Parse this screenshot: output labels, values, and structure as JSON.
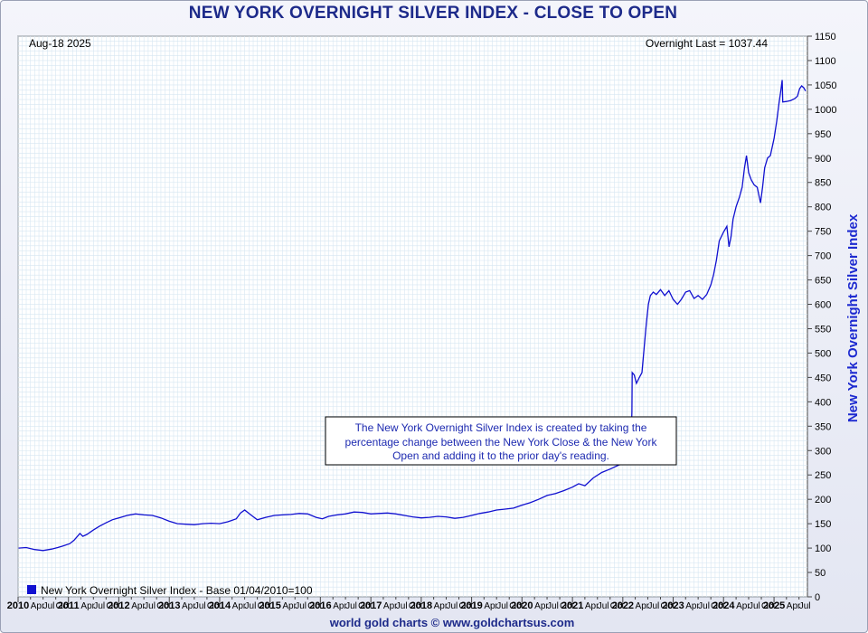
{
  "header": {
    "title": "NEW YORK OVERNIGHT SILVER INDEX - CLOSE TO OPEN"
  },
  "footer": {
    "credit": "world gold charts © www.goldchartsus.com"
  },
  "colors": {
    "line": "#1010d0",
    "title": "#1d2a8a",
    "grid": "#d6e6f2",
    "legend_swatch": "#1010d0"
  },
  "chart_data": {
    "type": "line",
    "date_label": "Aug-18  2025",
    "last_label": "Overnight Last = 1037.44",
    "ylabel": "New York Overnight Silver Index",
    "legend": "New York Overnight Silver Index - Base 01/04/2010=100",
    "annotation": [
      "The New York Overnight Silver Index is created by taking the",
      "percentage change between the New York Close & the New York",
      "Open and adding it to the prior day's reading."
    ],
    "ylim": [
      0,
      1150
    ],
    "yticks": [
      "0",
      "50",
      "100",
      "150",
      "200",
      "250",
      "300",
      "350",
      "400",
      "450",
      "500",
      "550",
      "600",
      "650",
      "700",
      "750",
      "800",
      "850",
      "900",
      "950",
      "1000",
      "1050",
      "1100",
      "1150"
    ],
    "xlim": [
      "2010-01-01",
      "2025-08-31"
    ],
    "xticks": [
      {
        "date": "2010-01-01",
        "label": "2010"
      },
      {
        "date": "2010-04-01",
        "label": "Apr"
      },
      {
        "date": "2010-07-01",
        "label": "Jul"
      },
      {
        "date": "2010-10-01",
        "label": "Oct"
      },
      {
        "date": "2011-01-01",
        "label": "2011"
      },
      {
        "date": "2011-04-01",
        "label": "Apr"
      },
      {
        "date": "2011-07-01",
        "label": "Jul"
      },
      {
        "date": "2011-10-01",
        "label": "Oct"
      },
      {
        "date": "2012-01-01",
        "label": "2012"
      },
      {
        "date": "2012-04-01",
        "label": "Apr"
      },
      {
        "date": "2012-07-01",
        "label": "Jul"
      },
      {
        "date": "2012-10-01",
        "label": "Oct"
      },
      {
        "date": "2013-01-01",
        "label": "2013"
      },
      {
        "date": "2013-04-01",
        "label": "Apr"
      },
      {
        "date": "2013-07-01",
        "label": "Jul"
      },
      {
        "date": "2013-10-01",
        "label": "Oct"
      },
      {
        "date": "2014-01-01",
        "label": "2014"
      },
      {
        "date": "2014-04-01",
        "label": "Apr"
      },
      {
        "date": "2014-07-01",
        "label": "Jul"
      },
      {
        "date": "2014-10-01",
        "label": "Oct"
      },
      {
        "date": "2015-01-01",
        "label": "2015"
      },
      {
        "date": "2015-04-01",
        "label": "Apr"
      },
      {
        "date": "2015-07-01",
        "label": "Jul"
      },
      {
        "date": "2015-10-01",
        "label": "Oct"
      },
      {
        "date": "2016-01-01",
        "label": "2016"
      },
      {
        "date": "2016-04-01",
        "label": "Apr"
      },
      {
        "date": "2016-07-01",
        "label": "Jul"
      },
      {
        "date": "2016-10-01",
        "label": "Oct"
      },
      {
        "date": "2017-01-01",
        "label": "2017"
      },
      {
        "date": "2017-04-01",
        "label": "Apr"
      },
      {
        "date": "2017-07-01",
        "label": "Jul"
      },
      {
        "date": "2017-10-01",
        "label": "Oct"
      },
      {
        "date": "2018-01-01",
        "label": "2018"
      },
      {
        "date": "2018-04-01",
        "label": "Apr"
      },
      {
        "date": "2018-07-01",
        "label": "Jul"
      },
      {
        "date": "2018-10-01",
        "label": "Oct"
      },
      {
        "date": "2019-01-01",
        "label": "2019"
      },
      {
        "date": "2019-04-01",
        "label": "Apr"
      },
      {
        "date": "2019-07-01",
        "label": "Jul"
      },
      {
        "date": "2019-10-01",
        "label": "Oct"
      },
      {
        "date": "2020-01-01",
        "label": "2020"
      },
      {
        "date": "2020-04-01",
        "label": "Apr"
      },
      {
        "date": "2020-07-01",
        "label": "Jul"
      },
      {
        "date": "2020-10-01",
        "label": "Oct"
      },
      {
        "date": "2021-01-01",
        "label": "2021"
      },
      {
        "date": "2021-04-01",
        "label": "Apr"
      },
      {
        "date": "2021-07-01",
        "label": "Jul"
      },
      {
        "date": "2021-10-01",
        "label": "Oct"
      },
      {
        "date": "2022-01-01",
        "label": "2022"
      },
      {
        "date": "2022-04-01",
        "label": "Apr"
      },
      {
        "date": "2022-07-01",
        "label": "Jul"
      },
      {
        "date": "2022-10-01",
        "label": "Oct"
      },
      {
        "date": "2023-01-01",
        "label": "2023"
      },
      {
        "date": "2023-04-01",
        "label": "Apr"
      },
      {
        "date": "2023-07-01",
        "label": "Jul"
      },
      {
        "date": "2023-10-01",
        "label": "Oct"
      },
      {
        "date": "2024-01-01",
        "label": "2024"
      },
      {
        "date": "2024-04-01",
        "label": "Apr"
      },
      {
        "date": "2024-07-01",
        "label": "Jul"
      },
      {
        "date": "2024-10-01",
        "label": "Oct"
      },
      {
        "date": "2025-01-01",
        "label": "2025"
      },
      {
        "date": "2025-04-01",
        "label": "Apr"
      },
      {
        "date": "2025-07-01",
        "label": "Jul"
      }
    ],
    "series": [
      {
        "name": "New York Overnight Silver Index - Base 01/04/2010=100",
        "points": [
          [
            "2010-01-04",
            100
          ],
          [
            "2010-03-01",
            101
          ],
          [
            "2010-05-01",
            97
          ],
          [
            "2010-07-01",
            95
          ],
          [
            "2010-09-01",
            98
          ],
          [
            "2010-10-15",
            101
          ],
          [
            "2010-11-20",
            104
          ],
          [
            "2011-01-10",
            109
          ],
          [
            "2011-02-10",
            116
          ],
          [
            "2011-03-01",
            122
          ],
          [
            "2011-03-25",
            130
          ],
          [
            "2011-04-15",
            124
          ],
          [
            "2011-05-15",
            128
          ],
          [
            "2011-07-01",
            137
          ],
          [
            "2011-08-15",
            145
          ],
          [
            "2011-10-01",
            152
          ],
          [
            "2011-11-15",
            158
          ],
          [
            "2012-01-01",
            162
          ],
          [
            "2012-03-01",
            167
          ],
          [
            "2012-05-01",
            170
          ],
          [
            "2012-07-01",
            168
          ],
          [
            "2012-09-01",
            167
          ],
          [
            "2012-11-01",
            162
          ],
          [
            "2013-01-01",
            155
          ],
          [
            "2013-03-01",
            150
          ],
          [
            "2013-05-01",
            149
          ],
          [
            "2013-07-01",
            148
          ],
          [
            "2013-09-01",
            150
          ],
          [
            "2013-11-01",
            151
          ],
          [
            "2014-01-01",
            150
          ],
          [
            "2014-03-01",
            154
          ],
          [
            "2014-05-01",
            160
          ],
          [
            "2014-06-01",
            172
          ],
          [
            "2014-07-01",
            178
          ],
          [
            "2014-08-15",
            168
          ],
          [
            "2014-10-01",
            158
          ],
          [
            "2014-12-01",
            163
          ],
          [
            "2015-02-01",
            167
          ],
          [
            "2015-04-01",
            168
          ],
          [
            "2015-06-01",
            169
          ],
          [
            "2015-08-01",
            171
          ],
          [
            "2015-10-01",
            170
          ],
          [
            "2015-12-01",
            163
          ],
          [
            "2016-01-15",
            160
          ],
          [
            "2016-03-01",
            165
          ],
          [
            "2016-05-01",
            168
          ],
          [
            "2016-07-01",
            170
          ],
          [
            "2016-09-01",
            174
          ],
          [
            "2016-11-01",
            173
          ],
          [
            "2017-01-01",
            170
          ],
          [
            "2017-03-01",
            171
          ],
          [
            "2017-05-01",
            172
          ],
          [
            "2017-07-01",
            170
          ],
          [
            "2017-09-01",
            167
          ],
          [
            "2017-11-01",
            164
          ],
          [
            "2018-01-01",
            162
          ],
          [
            "2018-03-01",
            163
          ],
          [
            "2018-05-01",
            165
          ],
          [
            "2018-07-01",
            164
          ],
          [
            "2018-09-01",
            161
          ],
          [
            "2018-11-01",
            163
          ],
          [
            "2019-01-01",
            167
          ],
          [
            "2019-03-01",
            171
          ],
          [
            "2019-05-01",
            174
          ],
          [
            "2019-07-01",
            178
          ],
          [
            "2019-09-01",
            180
          ],
          [
            "2019-11-01",
            182
          ],
          [
            "2020-01-01",
            188
          ],
          [
            "2020-03-01",
            193
          ],
          [
            "2020-05-01",
            200
          ],
          [
            "2020-07-01",
            208
          ],
          [
            "2020-09-01",
            212
          ],
          [
            "2020-11-01",
            218
          ],
          [
            "2021-01-01",
            225
          ],
          [
            "2021-02-15",
            232
          ],
          [
            "2021-04-01",
            228
          ],
          [
            "2021-06-01",
            244
          ],
          [
            "2021-08-01",
            255
          ],
          [
            "2021-10-01",
            262
          ],
          [
            "2021-12-01",
            270
          ],
          [
            "2022-02-01",
            276
          ],
          [
            "2022-02-20",
            290
          ],
          [
            "2022-03-01",
            305
          ],
          [
            "2022-03-05",
            350
          ],
          [
            "2022-03-08",
            380
          ],
          [
            "2022-03-10",
            460
          ],
          [
            "2022-03-25",
            455
          ],
          [
            "2022-04-10",
            438
          ],
          [
            "2022-05-01",
            450
          ],
          [
            "2022-05-20",
            460
          ],
          [
            "2022-06-01",
            500
          ],
          [
            "2022-06-20",
            560
          ],
          [
            "2022-07-05",
            600
          ],
          [
            "2022-07-20",
            618
          ],
          [
            "2022-08-10",
            625
          ],
          [
            "2022-09-01",
            620
          ],
          [
            "2022-10-01",
            630
          ],
          [
            "2022-11-01",
            618
          ],
          [
            "2022-12-01",
            628
          ],
          [
            "2023-01-01",
            610
          ],
          [
            "2023-02-01",
            600
          ],
          [
            "2023-03-01",
            610
          ],
          [
            "2023-04-01",
            625
          ],
          [
            "2023-05-01",
            628
          ],
          [
            "2023-06-01",
            612
          ],
          [
            "2023-07-01",
            618
          ],
          [
            "2023-08-01",
            610
          ],
          [
            "2023-09-01",
            620
          ],
          [
            "2023-10-01",
            640
          ],
          [
            "2023-10-20",
            660
          ],
          [
            "2023-11-10",
            690
          ],
          [
            "2023-12-01",
            730
          ],
          [
            "2024-01-01",
            748
          ],
          [
            "2024-01-25",
            760
          ],
          [
            "2024-02-10",
            718
          ],
          [
            "2024-02-25",
            740
          ],
          [
            "2024-03-10",
            775
          ],
          [
            "2024-04-01",
            800
          ],
          [
            "2024-04-25",
            820
          ],
          [
            "2024-05-15",
            840
          ],
          [
            "2024-06-01",
            880
          ],
          [
            "2024-06-15",
            905
          ],
          [
            "2024-07-01",
            870
          ],
          [
            "2024-07-20",
            855
          ],
          [
            "2024-08-10",
            845
          ],
          [
            "2024-09-01",
            840
          ],
          [
            "2024-09-25",
            808
          ],
          [
            "2024-10-10",
            840
          ],
          [
            "2024-10-25",
            880
          ],
          [
            "2024-11-15",
            900
          ],
          [
            "2024-12-05",
            905
          ],
          [
            "2025-01-01",
            940
          ],
          [
            "2025-01-20",
            975
          ],
          [
            "2025-02-05",
            1010
          ],
          [
            "2025-02-20",
            1040
          ],
          [
            "2025-03-01",
            1060
          ],
          [
            "2025-03-05",
            1015
          ],
          [
            "2025-04-01",
            1016
          ],
          [
            "2025-05-01",
            1018
          ],
          [
            "2025-06-01",
            1022
          ],
          [
            "2025-06-20",
            1027
          ],
          [
            "2025-07-05",
            1042
          ],
          [
            "2025-07-20",
            1048
          ],
          [
            "2025-08-05",
            1044
          ],
          [
            "2025-08-18",
            1037.44
          ]
        ]
      }
    ]
  }
}
